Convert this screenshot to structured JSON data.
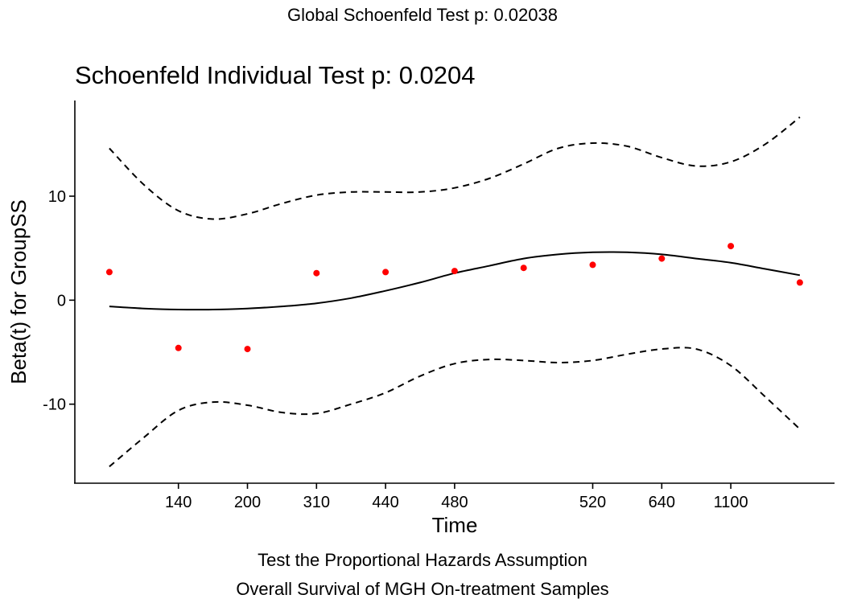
{
  "figure": {
    "global_title": "Global Schoenfeld Test p: 0.02038",
    "caption_line1": "Test the Proportional Hazards Assumption",
    "caption_line2": "Overall Survival of MGH On-treatment Samples"
  },
  "chart_data": {
    "type": "scatter",
    "title": "Schoenfeld Individual Test p: 0.0204",
    "xlabel": "Time",
    "ylabel": "Beta(t) for GroupSS",
    "x_tick_labels": [
      "140",
      "200",
      "310",
      "440",
      "480",
      "520",
      "640",
      "1100"
    ],
    "y_ticks": [
      -10,
      0,
      10
    ],
    "y_tick_labels": [
      "-10",
      "0",
      "10"
    ],
    "ylim": [
      -17.6,
      19.2
    ],
    "grid": false,
    "legend": "none",
    "colors": {
      "points": "#ff0000",
      "lines": "#000000"
    },
    "points": {
      "x": [
        0.5,
        1.5,
        2.5,
        3.5,
        4.5,
        5.5,
        6.5,
        7.5,
        8.5,
        9.5,
        10.5
      ],
      "y": [
        2.7,
        -4.6,
        -4.7,
        2.6,
        2.7,
        2.8,
        3.1,
        3.4,
        4.0,
        5.2,
        1.7
      ]
    },
    "series": [
      {
        "style": "solid",
        "x": [
          0.5,
          1.0,
          1.5,
          2.0,
          2.5,
          3.0,
          3.5,
          4.0,
          4.5,
          5.0,
          5.5,
          6.0,
          6.5,
          7.0,
          7.5,
          8.0,
          8.5,
          9.0,
          9.5,
          10.0,
          10.5
        ],
        "y": [
          -0.6,
          -0.8,
          -0.9,
          -0.9,
          -0.8,
          -0.6,
          -0.3,
          0.2,
          0.9,
          1.7,
          2.6,
          3.3,
          4.0,
          4.4,
          4.6,
          4.6,
          4.4,
          4.0,
          3.6,
          3.0,
          2.4
        ]
      },
      {
        "style": "dashed",
        "x": [
          0.5,
          1.0,
          1.5,
          2.0,
          2.5,
          3.0,
          3.5,
          4.0,
          4.5,
          5.0,
          5.5,
          6.0,
          6.5,
          7.0,
          7.5,
          8.0,
          8.5,
          9.0,
          9.5,
          10.0,
          10.5
        ],
        "y": [
          14.6,
          11.1,
          8.6,
          7.8,
          8.3,
          9.3,
          10.1,
          10.4,
          10.4,
          10.4,
          10.8,
          11.7,
          13.1,
          14.6,
          15.1,
          14.8,
          13.7,
          12.9,
          13.3,
          15.0,
          17.6
        ]
      },
      {
        "style": "dashed",
        "x": [
          0.5,
          1.0,
          1.5,
          2.0,
          2.5,
          3.0,
          3.5,
          4.0,
          4.5,
          5.0,
          5.5,
          6.0,
          6.5,
          7.0,
          7.5,
          8.0,
          8.5,
          9.0,
          9.5,
          10.0,
          10.5
        ],
        "y": [
          -16.0,
          -13.2,
          -10.6,
          -9.8,
          -10.1,
          -10.8,
          -10.9,
          -10.0,
          -8.9,
          -7.3,
          -6.1,
          -5.7,
          -5.8,
          -6.0,
          -5.8,
          -5.2,
          -4.7,
          -4.7,
          -6.3,
          -9.3,
          -12.4
        ]
      }
    ]
  }
}
